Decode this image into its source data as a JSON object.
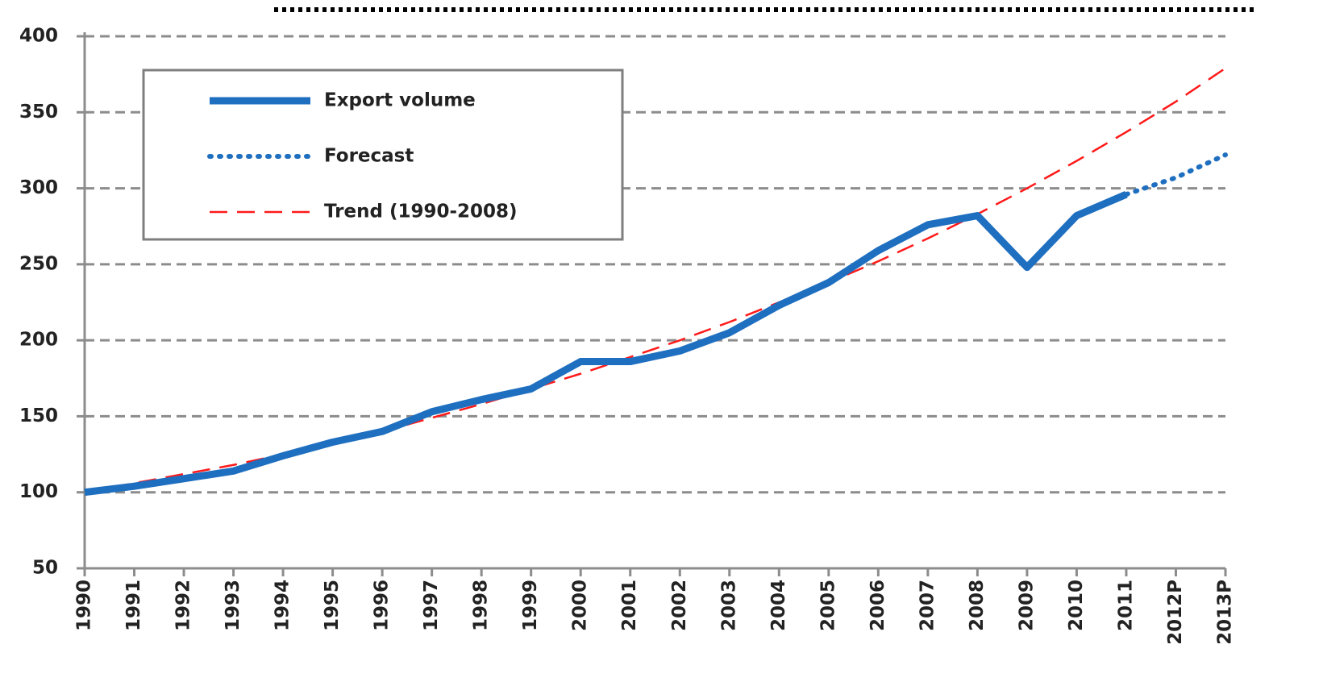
{
  "chart_data": {
    "type": "line",
    "categories": [
      "1990",
      "1991",
      "1992",
      "1993",
      "1994",
      "1995",
      "1996",
      "1997",
      "1998",
      "1999",
      "2000",
      "2001",
      "2002",
      "2003",
      "2004",
      "2005",
      "2006",
      "2007",
      "2008",
      "2009",
      "2010",
      "2011",
      "2012P",
      "2013P"
    ],
    "series": [
      {
        "name": "Export volume",
        "color": "#1f6fc0",
        "style": "solid",
        "values": [
          100,
          104,
          109,
          114,
          124,
          133,
          140,
          153,
          161,
          168,
          186,
          186,
          193,
          205,
          223,
          238,
          259,
          276,
          282,
          248,
          282,
          296,
          null,
          null
        ]
      },
      {
        "name": "Forecast",
        "color": "#1f6fc0",
        "style": "dotted",
        "values": [
          null,
          null,
          null,
          null,
          null,
          null,
          null,
          null,
          null,
          null,
          null,
          null,
          null,
          null,
          null,
          null,
          null,
          null,
          null,
          null,
          null,
          296,
          307,
          322
        ]
      },
      {
        "name": "Trend (1990-2008)",
        "color": "#ff1a1a",
        "style": "dashed",
        "values": [
          100,
          106,
          112,
          118,
          125,
          132,
          140,
          149,
          158,
          168,
          178,
          189,
          200,
          212,
          225,
          238,
          252,
          267,
          283,
          300,
          318,
          337,
          357,
          379
        ]
      }
    ],
    "ylim": [
      50,
      400
    ],
    "yticks": [
      50,
      100,
      150,
      200,
      250,
      300,
      350,
      400
    ],
    "grid": true,
    "legend": "upper left"
  }
}
